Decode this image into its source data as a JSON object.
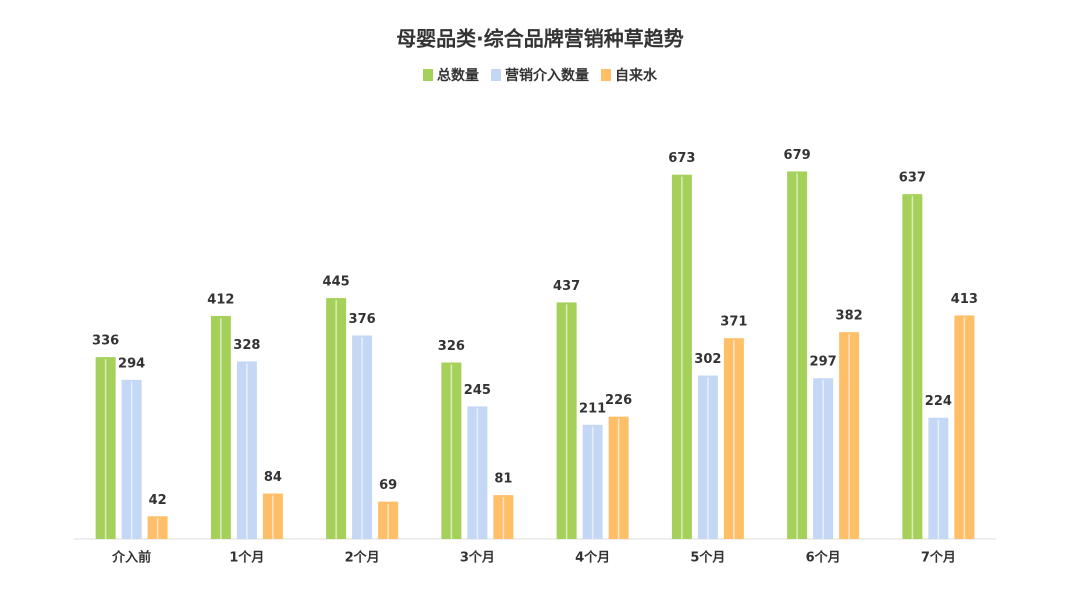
{
  "chart_data": {
    "type": "bar",
    "title": "母婴品类·综合品牌营销种草趋势",
    "categories": [
      "介入前",
      "1个月",
      "2个月",
      "3个月",
      "4个月",
      "5个月",
      "6个月",
      "7个月"
    ],
    "series": [
      {
        "name": "总数量",
        "color": "#a5d15a",
        "values": [
          336,
          412,
          445,
          326,
          437,
          673,
          679,
          637
        ]
      },
      {
        "name": "营销介入数量",
        "color": "#c4d8f6",
        "values": [
          294,
          328,
          376,
          245,
          211,
          302,
          297,
          224
        ]
      },
      {
        "name": "自来水",
        "color": "#ffbf69",
        "values": [
          42,
          84,
          69,
          81,
          226,
          371,
          382,
          413
        ]
      }
    ],
    "ylim": [
      0,
      750
    ],
    "legend": "top"
  }
}
